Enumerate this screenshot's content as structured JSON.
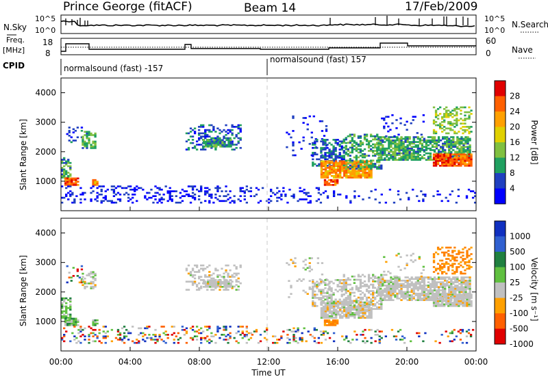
{
  "header": {
    "station": "Prince George (fitACF)",
    "beam": "Beam 14",
    "date": "17/Feb/2009"
  },
  "strips": {
    "nsky_label": "N.Sky",
    "nsearch_label": "N.Search",
    "freq_label_top": "Freq.",
    "freq_label_bottom": "[MHz]",
    "nave_label": "Nave",
    "cpid_label": "CPID",
    "noise_ticks_left": [
      "10^5",
      "10^0"
    ],
    "noise_ticks_right": [
      "10^5",
      "10^0"
    ],
    "freq_ticks_left": [
      "18",
      "8"
    ],
    "nave_ticks_right": [
      "60",
      "0"
    ],
    "cpid_segments": [
      "normalsound (fast) -157",
      "normalsound (fast) 157"
    ]
  },
  "chart_data": [
    {
      "type": "heatmap",
      "name": "power-panel",
      "ylabel": "Slant Range [km]",
      "xlabel": "Time UT",
      "yticks": [
        "1000",
        "2000",
        "3000",
        "4000"
      ],
      "xticks": [
        "00:00",
        "04:00",
        "08:00",
        "12:00",
        "16:00",
        "20:00",
        "00:00"
      ],
      "colorbar_label": "Power [dB]",
      "colorbar_ticks": [
        "28",
        "24",
        "20",
        "16",
        "12",
        "8",
        "4"
      ],
      "colorbar_colors": [
        "#e00000",
        "#ff6000",
        "#ffa000",
        "#e0d000",
        "#80c040",
        "#20a060",
        "#2040c0",
        "#0000ff"
      ]
    },
    {
      "type": "heatmap",
      "name": "velocity-panel",
      "ylabel": "Slant Range [km]",
      "xlabel": "Time UT",
      "yticks": [
        "1000",
        "2000",
        "3000",
        "4000"
      ],
      "xticks": [
        "00:00",
        "04:00",
        "08:00",
        "12:00",
        "16:00",
        "20:00",
        "00:00"
      ],
      "colorbar_label": "Velocity [m s⁻¹]",
      "colorbar_ticks": [
        "1000",
        "500",
        "100",
        "25",
        "-25",
        "-100",
        "-500",
        "-1000"
      ],
      "colorbar_colors": [
        "#1030c0",
        "#3060d0",
        "#208040",
        "#60c040",
        "#c0c0c0",
        "#ffa000",
        "#ff6000",
        "#e00000"
      ]
    }
  ],
  "time_axis_label": "Time UT"
}
